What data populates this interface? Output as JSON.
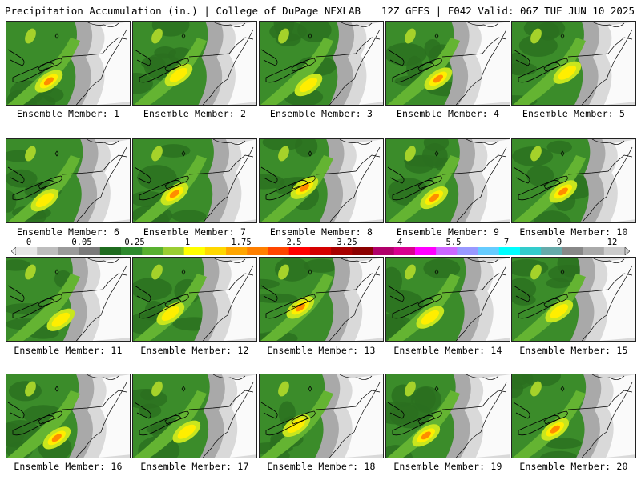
{
  "header": {
    "left": "Precipitation Accumulation (in.) | College of DuPage NEXLAB",
    "right": "12Z GEFS | F042 Valid: 06Z TUE JUN 10 2025"
  },
  "legend": {
    "ticks": [
      "0",
      "0.05",
      "0.25",
      "1",
      "1.75",
      "2.5",
      "3.25",
      "4",
      "5.5",
      "7",
      "9",
      "12"
    ],
    "colors": [
      "#e6e6e6",
      "#bdbdbd",
      "#9a9a9a",
      "#7a7a7a",
      "#1f6b1f",
      "#2e8a2e",
      "#58b030",
      "#9acd32",
      "#ffff00",
      "#ffd700",
      "#ffa500",
      "#ff7f00",
      "#ff4500",
      "#ff0000",
      "#d40000",
      "#a80000",
      "#8b0000",
      "#b0006a",
      "#d8008f",
      "#ff00ff",
      "#cc66ff",
      "#9999ff",
      "#66ccff",
      "#00ffff",
      "#33cccc",
      "#66aaaa",
      "#888888",
      "#aaaaaa",
      "#cccccc"
    ]
  },
  "members": [
    {
      "caption": "Ensemble Member: 1"
    },
    {
      "caption": "Ensemble Member: 2"
    },
    {
      "caption": "Ensemble Member: 3"
    },
    {
      "caption": "Ensemble Member: 4"
    },
    {
      "caption": "Ensemble Member: 5"
    },
    {
      "caption": "Ensemble Member: 6"
    },
    {
      "caption": "Ensemble Member: 7"
    },
    {
      "caption": "Ensemble Member: 8"
    },
    {
      "caption": "Ensemble Member: 9"
    },
    {
      "caption": "Ensemble Member: 10"
    },
    {
      "caption": "Ensemble Member: 11"
    },
    {
      "caption": "Ensemble Member: 12"
    },
    {
      "caption": "Ensemble Member: 13"
    },
    {
      "caption": "Ensemble Member: 14"
    },
    {
      "caption": "Ensemble Member: 15"
    },
    {
      "caption": "Ensemble Member: 16"
    },
    {
      "caption": "Ensemble Member: 17"
    },
    {
      "caption": "Ensemble Member: 18"
    },
    {
      "caption": "Ensemble Member: 19"
    },
    {
      "caption": "Ensemble Member: 20"
    }
  ]
}
